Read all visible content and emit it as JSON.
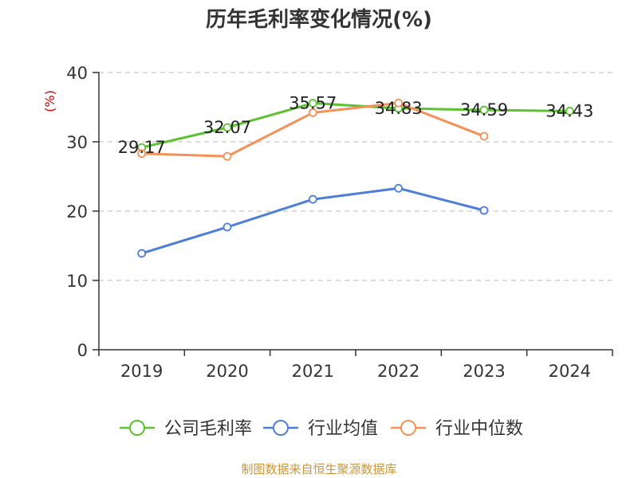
{
  "chart_data": {
    "type": "line",
    "title": "历年毛利率变化情况(%)",
    "ylabel": "(%)",
    "xlabel": "",
    "categories": [
      "2019",
      "2020",
      "2021",
      "2022",
      "2023",
      "2024"
    ],
    "ylim": [
      0,
      40
    ],
    "yticks": [
      0,
      10,
      20,
      30,
      40
    ],
    "grid": true,
    "legend_position": "bottom",
    "series": [
      {
        "name": "公司毛利率",
        "color": "#5bc230",
        "values": [
          29.17,
          32.07,
          35.57,
          34.83,
          34.59,
          34.43
        ],
        "show_labels": true
      },
      {
        "name": "行业均值",
        "color": "#4e7fd6",
        "values": [
          13.9,
          17.7,
          21.7,
          23.3,
          20.1,
          null
        ],
        "show_labels": false
      },
      {
        "name": "行业中位数",
        "color": "#f39158",
        "values": [
          28.3,
          27.9,
          34.2,
          35.6,
          30.8,
          null
        ],
        "show_labels": false
      }
    ]
  },
  "footer": {
    "source": "制图数据来自恒生聚源数据库"
  }
}
